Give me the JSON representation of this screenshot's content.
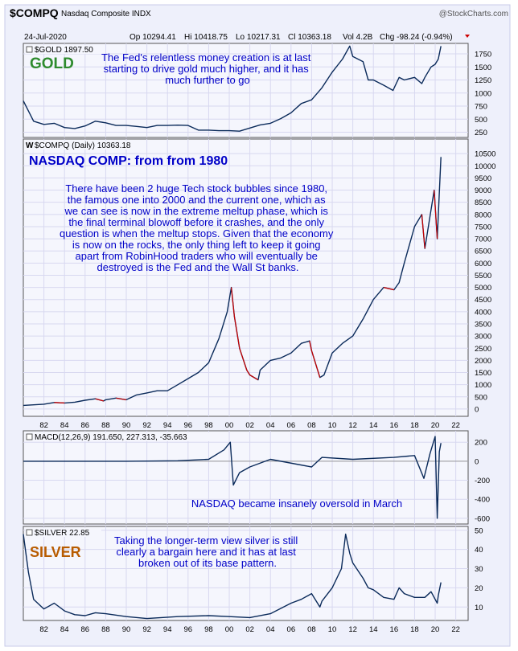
{
  "header": {
    "symbol": "$COMPQ",
    "name": "Nasdaq Composite INDX",
    "watermark": "@StockCharts.com",
    "date": "24-Jul-2020",
    "op": "Op 10294.41",
    "hi": "Hi 10418.75",
    "lo": "Lo 10217.31",
    "cl": "Cl 10363.18",
    "vol": "Vol 4.2B",
    "chg": "Chg -98.24 (-0.94%)"
  },
  "x_ticks": [
    "82",
    "84",
    "86",
    "88",
    "90",
    "92",
    "94",
    "96",
    "98",
    "00",
    "02",
    "04",
    "06",
    "08",
    "10",
    "12",
    "14",
    "16",
    "18",
    "20",
    "22"
  ],
  "colors": {
    "line": "#0a2a5a",
    "down": "#cc0000",
    "annotation": "#0000c8",
    "gold_title": "#2e8b2e",
    "silver_title": "#b85c00",
    "grid": "#d8d8f0"
  },
  "panels": {
    "gold": {
      "label": "$GOLD 1897.50",
      "title": "GOLD",
      "note_lines": [
        "The Fed's relentless money creation is at last",
        "starting to drive gold much higher, and it has",
        "much further to go"
      ]
    },
    "nasdaq": {
      "label": "$COMPQ (Daily) 10363.18",
      "title": "NASDAQ COMP: from from 1980",
      "note_lines": [
        "There have been 2 huge Tech stock bubbles since 1980,",
        "the famous one into 2000 and the current one, which as",
        "we can see is now in the extreme meltup phase, which is",
        "the final terminal blowoff before it crashes, and the only",
        "question is when the meltup stops. Given that the economy",
        "is now on the rocks, the only thing left to keep it going",
        "apart from RobinHood traders who will eventually be",
        "destroyed is the Fed and the Wall St banks."
      ]
    },
    "macd": {
      "label": "MACD(12,26,9) 191.650, 227.313, -35.663",
      "note": "NASDAQ became insanely oversold in March"
    },
    "silver": {
      "label": "$SILVER 22.85",
      "title": "SILVER",
      "note_lines": [
        "Taking the longer-term view silver is still",
        "clearly a bargain here and it has at last",
        "broken out of its base pattern."
      ]
    }
  },
  "chart_data": [
    {
      "type": "line",
      "name": "$GOLD",
      "x": [
        1980,
        1981,
        1982,
        1983,
        1984,
        1985,
        1986,
        1987,
        1988,
        1989,
        1990,
        1991,
        1992,
        1993,
        1994,
        1995,
        1996,
        1997,
        1998,
        1999,
        2000,
        2001,
        2002,
        2003,
        2004,
        2005,
        2006,
        2007,
        2008,
        2009,
        2010,
        2011,
        2011.7,
        2012,
        2013,
        2013.5,
        2014,
        2015,
        2015.9,
        2016.5,
        2017,
        2018,
        2018.7,
        2019,
        2019.6,
        2020,
        2020.3,
        2020.56
      ],
      "y": [
        850,
        460,
        400,
        420,
        340,
        320,
        370,
        460,
        430,
        380,
        380,
        360,
        340,
        380,
        380,
        385,
        380,
        290,
        290,
        280,
        280,
        270,
        330,
        390,
        420,
        510,
        620,
        800,
        870,
        1100,
        1400,
        1650,
        1900,
        1700,
        1600,
        1250,
        1250,
        1150,
        1050,
        1300,
        1250,
        1300,
        1180,
        1300,
        1500,
        1550,
        1650,
        1897
      ],
      "ylim": [
        150,
        1950
      ],
      "yticks": [
        250,
        500,
        750,
        1000,
        1250,
        1500,
        1750
      ]
    },
    {
      "type": "line",
      "name": "$COMPQ",
      "x": [
        1980,
        1982,
        1983,
        1984,
        1985,
        1986,
        1987,
        1987.8,
        1988,
        1989,
        1990,
        1991,
        1992,
        1993,
        1994,
        1995,
        1996,
        1997,
        1998,
        1999,
        1999.8,
        2000.2,
        2000.5,
        2001,
        2001.7,
        2002,
        2002.8,
        2003,
        2004,
        2005,
        2006,
        2007,
        2007.8,
        2008,
        2008.8,
        2009.2,
        2010,
        2011,
        2012,
        2013,
        2014,
        2015,
        2016,
        2016.5,
        2017,
        2018,
        2018.7,
        2019,
        2019.9,
        2020.2,
        2020.56
      ],
      "y": [
        150,
        200,
        270,
        250,
        280,
        360,
        420,
        330,
        380,
        450,
        380,
        580,
        660,
        750,
        750,
        1000,
        1250,
        1500,
        1900,
        2900,
        4000,
        5000,
        3800,
        2500,
        1600,
        1400,
        1200,
        1600,
        2000,
        2100,
        2300,
        2700,
        2800,
        2400,
        1300,
        1400,
        2300,
        2700,
        3000,
        3700,
        4500,
        5000,
        4900,
        5200,
        6000,
        7500,
        8000,
        6600,
        9000,
        7000,
        10363
      ],
      "ylim": [
        -300,
        11100
      ],
      "yticks": [
        0,
        500,
        1000,
        1500,
        2000,
        2500,
        3000,
        3500,
        4000,
        4500,
        5000,
        5500,
        6000,
        6500,
        7000,
        7500,
        8000,
        8500,
        9000,
        9500,
        10000,
        10500
      ]
    },
    {
      "type": "line",
      "name": "MACD(12,26,9)",
      "x": [
        1980,
        1990,
        1995,
        1998,
        1999.5,
        2000.1,
        2000.4,
        2001,
        2002,
        2004,
        2008,
        2009,
        2012,
        2016,
        2018,
        2018.9,
        2019.5,
        2020,
        2020.2,
        2020.4,
        2020.56
      ],
      "y": [
        0,
        0,
        5,
        20,
        120,
        200,
        -250,
        -120,
        -60,
        20,
        -60,
        40,
        20,
        40,
        60,
        -180,
        80,
        260,
        -600,
        100,
        191.65
      ],
      "ylim": [
        -660,
        320
      ],
      "yticks": [
        -600,
        -400,
        -200,
        0,
        200
      ]
    },
    {
      "type": "line",
      "name": "$SILVER",
      "x": [
        1980,
        1980.5,
        1981,
        1982,
        1983,
        1984,
        1985,
        1986,
        1987,
        1988,
        1990,
        1992,
        1995,
        1998,
        2000,
        2002,
        2004,
        2006,
        2007,
        2008,
        2008.8,
        2009,
        2010,
        2010.9,
        2011.3,
        2011.7,
        2012,
        2013,
        2013.5,
        2014,
        2015,
        2016,
        2016.5,
        2017,
        2018,
        2019,
        2019.6,
        2020.2,
        2020.3,
        2020.56
      ],
      "y": [
        48,
        28,
        14,
        9,
        12,
        8,
        6,
        5.5,
        7,
        6.5,
        5,
        4,
        5,
        5.5,
        5,
        4.5,
        6.5,
        12,
        14,
        17,
        10,
        13,
        20,
        30,
        48,
        38,
        33,
        25,
        20,
        19,
        15,
        14,
        20,
        17,
        15,
        15,
        18,
        12,
        16,
        22.85
      ],
      "ylim": [
        3,
        52
      ],
      "yticks": [
        10,
        20,
        30,
        40,
        50
      ]
    }
  ]
}
